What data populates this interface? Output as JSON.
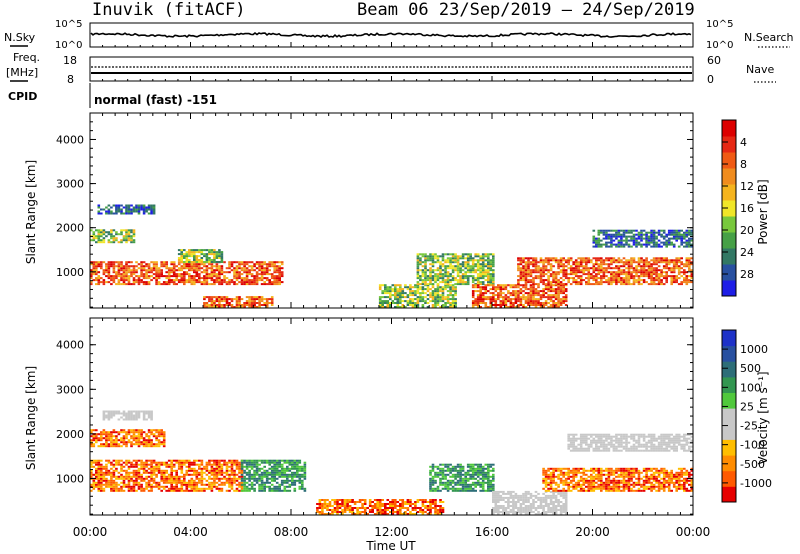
{
  "header": {
    "station": "Inuvik (fitACF)",
    "beam_date": "Beam 06  23/Sep/2019 – 24/Sep/2019"
  },
  "nsky_panel": {
    "left_label": "N.Sky",
    "left_ticks": [
      "10^5",
      "10^0"
    ],
    "right_ticks": [
      "10^5",
      "10^0"
    ],
    "right_label": "N.Search"
  },
  "freq_panel": {
    "left_label_1": "Freq.",
    "left_label_2": "[MHz]",
    "left_ticks": [
      "18",
      "8"
    ],
    "right_ticks": [
      "60",
      "0"
    ],
    "right_label": "Nave"
  },
  "cpid": {
    "label": "CPID",
    "value": "normal (fast) -151"
  },
  "colors": {
    "power": [
      "#1e1ee6",
      "#2850a0",
      "#327864",
      "#46a046",
      "#78c83c",
      "#f0e628",
      "#f5b41e",
      "#f08c1e",
      "#f05a14",
      "#e62814",
      "#dc0000"
    ],
    "velocity": [
      "#e60000",
      "#ff5a00",
      "#ff8c00",
      "#ffbe00",
      "#c8c8c8",
      "#c8c8c8",
      "#50c83c",
      "#329650",
      "#2d6e78",
      "#2850a0",
      "#1e32c8"
    ]
  },
  "chart_data": [
    {
      "type": "heatmap",
      "title": "",
      "xlabel": "",
      "ylabel": "Slant Range [km]",
      "x_ticks": [
        "00:00",
        "04:00",
        "08:00",
        "12:00",
        "16:00",
        "20:00",
        "00:00"
      ],
      "xlim_hours": [
        0,
        24
      ],
      "y_ticks": [
        1000,
        2000,
        3000,
        4000
      ],
      "ylim": [
        180,
        4600
      ],
      "colorbar": {
        "label": "Power [dB]",
        "tick_labels": [
          "4",
          "8",
          "12",
          "16",
          "20",
          "24",
          "28"
        ],
        "range": [
          0,
          32
        ]
      },
      "clusters": [
        {
          "t0": 0.0,
          "t1": 7.6,
          "r0": 700,
          "r1": 1200,
          "level": "high"
        },
        {
          "t0": 0.0,
          "t1": 1.8,
          "r0": 1650,
          "r1": 1950,
          "level": "mid"
        },
        {
          "t0": 0.3,
          "t1": 2.6,
          "r0": 2300,
          "r1": 2500,
          "level": "low"
        },
        {
          "t0": 3.5,
          "t1": 5.2,
          "r0": 1200,
          "r1": 1500,
          "level": "mid"
        },
        {
          "t0": 4.5,
          "t1": 7.2,
          "r0": 180,
          "r1": 450,
          "level": "high"
        },
        {
          "t0": 11.5,
          "t1": 14.5,
          "r0": 180,
          "r1": 700,
          "level": "mid"
        },
        {
          "t0": 13.0,
          "t1": 16.0,
          "r0": 700,
          "r1": 1400,
          "level": "mid"
        },
        {
          "t0": 15.2,
          "t1": 19.0,
          "r0": 180,
          "r1": 700,
          "level": "high"
        },
        {
          "t0": 17.0,
          "t1": 24.0,
          "r0": 700,
          "r1": 1300,
          "level": "high"
        },
        {
          "t0": 20.0,
          "t1": 24.0,
          "r0": 1550,
          "r1": 1950,
          "level": "low"
        }
      ]
    },
    {
      "type": "heatmap",
      "title": "",
      "xlabel": "Time UT",
      "ylabel": "Slant Range [km]",
      "x_ticks": [
        "00:00",
        "04:00",
        "08:00",
        "12:00",
        "16:00",
        "20:00",
        "00:00"
      ],
      "xlim_hours": [
        0,
        24
      ],
      "y_ticks": [
        1000,
        2000,
        3000,
        4000
      ],
      "ylim": [
        180,
        4600
      ],
      "colorbar": {
        "label": "Velocity [m s⁻¹]",
        "tick_labels": [
          "1000",
          "500",
          "100",
          "25",
          "-25",
          "-100",
          "-500",
          "-1000"
        ],
        "range": [
          -1000,
          1000
        ]
      },
      "clusters": [
        {
          "t0": 0.0,
          "t1": 6.0,
          "r0": 700,
          "r1": 1400,
          "level": "neg"
        },
        {
          "t0": 0.0,
          "t1": 3.0,
          "r0": 1700,
          "r1": 2100,
          "level": "neg"
        },
        {
          "t0": 0.5,
          "t1": 2.5,
          "r0": 2300,
          "r1": 2500,
          "level": "zero"
        },
        {
          "t0": 6.0,
          "t1": 8.5,
          "r0": 700,
          "r1": 1400,
          "level": "pos"
        },
        {
          "t0": 9.0,
          "t1": 14.0,
          "r0": 180,
          "r1": 500,
          "level": "neg"
        },
        {
          "t0": 13.5,
          "t1": 16.0,
          "r0": 700,
          "r1": 1300,
          "level": "pos"
        },
        {
          "t0": 16.0,
          "t1": 19.0,
          "r0": 180,
          "r1": 700,
          "level": "zero"
        },
        {
          "t0": 18.0,
          "t1": 24.0,
          "r0": 700,
          "r1": 1200,
          "level": "neg"
        },
        {
          "t0": 19.0,
          "t1": 24.0,
          "r0": 1600,
          "r1": 2000,
          "level": "zero"
        }
      ]
    }
  ]
}
